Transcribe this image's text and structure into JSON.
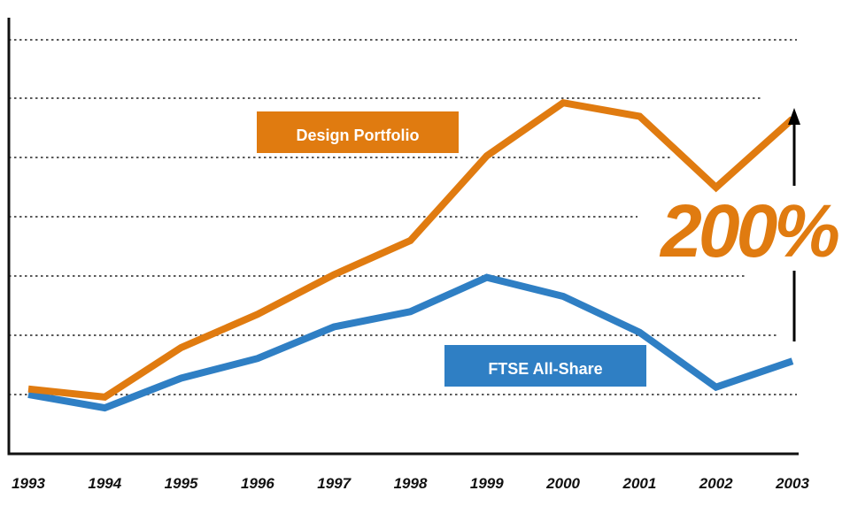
{
  "chart_data": {
    "type": "line",
    "categories": [
      "1993",
      "1994",
      "1995",
      "1996",
      "1997",
      "1998",
      "1999",
      "2000",
      "2001",
      "2002",
      "2003"
    ],
    "series": [
      {
        "name": "Design Portfolio",
        "color": "#e07b10",
        "values": [
          1.2,
          0.3,
          5.8,
          9.5,
          13.9,
          17.7,
          27.1,
          33.0,
          31.5,
          23.6,
          31.2
        ]
      },
      {
        "name": "FTSE All-Share",
        "color": "#2f7fc4",
        "values": [
          0.6,
          -0.9,
          2.4,
          4.6,
          8.1,
          9.8,
          13.6,
          11.5,
          7.5,
          1.4,
          4.3
        ]
      }
    ],
    "ylim": [
      -6,
      40
    ],
    "grid": true,
    "annotation": {
      "text": "200%",
      "color": "#e07b10"
    },
    "legend_placement": "inline"
  }
}
